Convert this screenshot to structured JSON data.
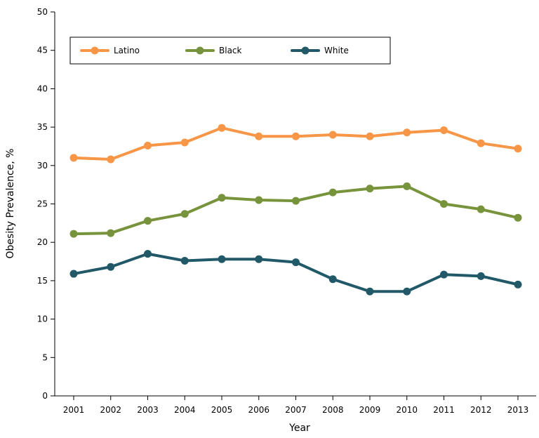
{
  "chart_data": {
    "type": "line",
    "title": "",
    "xlabel": "Year",
    "ylabel": "Obesity Prevalence, %",
    "ylim": [
      0,
      50
    ],
    "yticks": [
      0,
      5,
      10,
      15,
      20,
      25,
      30,
      35,
      40,
      45,
      50
    ],
    "categories": [
      "2001",
      "2002",
      "2003",
      "2004",
      "2005",
      "2006",
      "2007",
      "2008",
      "2009",
      "2010",
      "2011",
      "2012",
      "2013"
    ],
    "grid": false,
    "legend_placement": "top-left",
    "series": [
      {
        "name": "Latino",
        "color": "#f79646",
        "values": [
          31.0,
          30.8,
          32.6,
          33.0,
          34.9,
          33.8,
          33.8,
          34.0,
          33.8,
          34.3,
          34.6,
          32.9,
          32.2
        ]
      },
      {
        "name": "Black",
        "color": "#77933c",
        "values": [
          21.1,
          21.2,
          22.8,
          23.7,
          25.8,
          25.5,
          25.4,
          26.5,
          27.0,
          27.3,
          25.0,
          24.3,
          23.2
        ]
      },
      {
        "name": "White",
        "color": "#215968",
        "values": [
          15.9,
          16.8,
          18.5,
          17.6,
          17.8,
          17.8,
          17.4,
          15.2,
          13.6,
          13.6,
          15.8,
          15.6,
          14.5
        ]
      }
    ]
  }
}
